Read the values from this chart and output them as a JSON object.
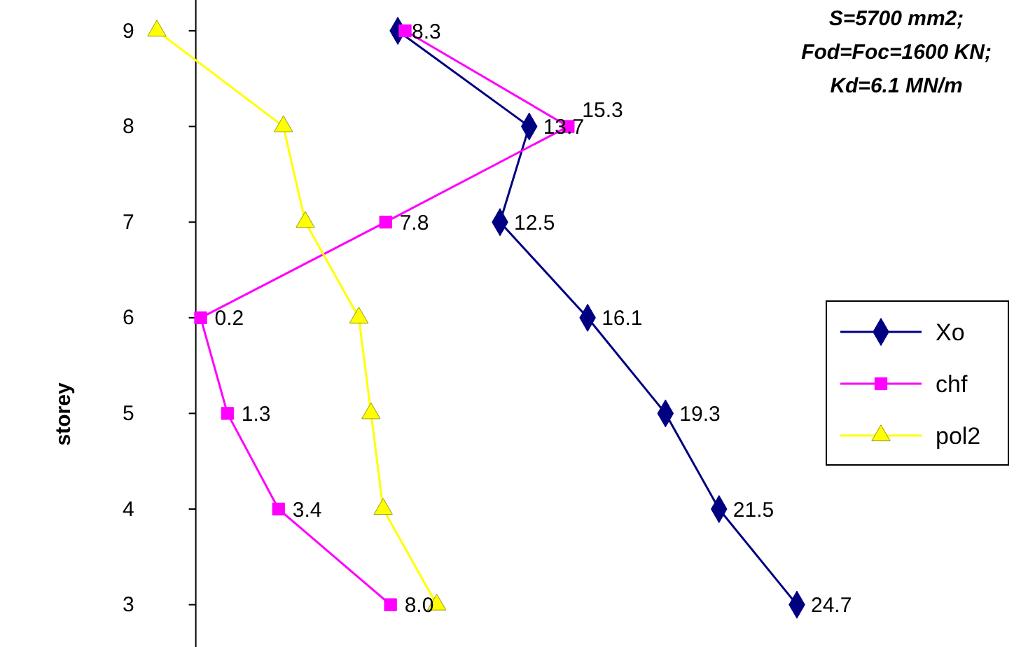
{
  "chart_data": {
    "type": "line",
    "orientation": "horizontal",
    "ylabel": "storey",
    "annotations": [
      "S=5700 mm2;",
      "Fod=Foc=1600 KN;",
      "Kd=6.1 MN/m"
    ],
    "categories": [
      "9",
      "8",
      "7",
      "6",
      "5",
      "4",
      "3"
    ],
    "series": [
      {
        "name": "Xo",
        "color": "#000080",
        "marker": "diamond",
        "values": [
          8.3,
          13.7,
          12.5,
          16.1,
          19.3,
          21.5,
          24.7
        ],
        "value_labels": [
          "8.3",
          "13.7",
          "12.5",
          "16.1",
          "19.3",
          "21.5",
          "24.7"
        ]
      },
      {
        "name": "chf",
        "color": "#ff00ff",
        "marker": "square",
        "values": [
          8.6,
          15.3,
          7.8,
          0.2,
          1.3,
          3.4,
          8.0
        ],
        "value_labels": [
          null,
          "15.3",
          "7.8",
          "0.2",
          "1.3",
          "3.4",
          "8.0"
        ]
      },
      {
        "name": "pol2",
        "color": "#ffff00",
        "marker": "triangle",
        "values": [
          -1.6,
          3.6,
          4.5,
          6.7,
          7.2,
          7.7,
          9.9
        ]
      }
    ],
    "tick_labels": "y",
    "legend": "right"
  }
}
